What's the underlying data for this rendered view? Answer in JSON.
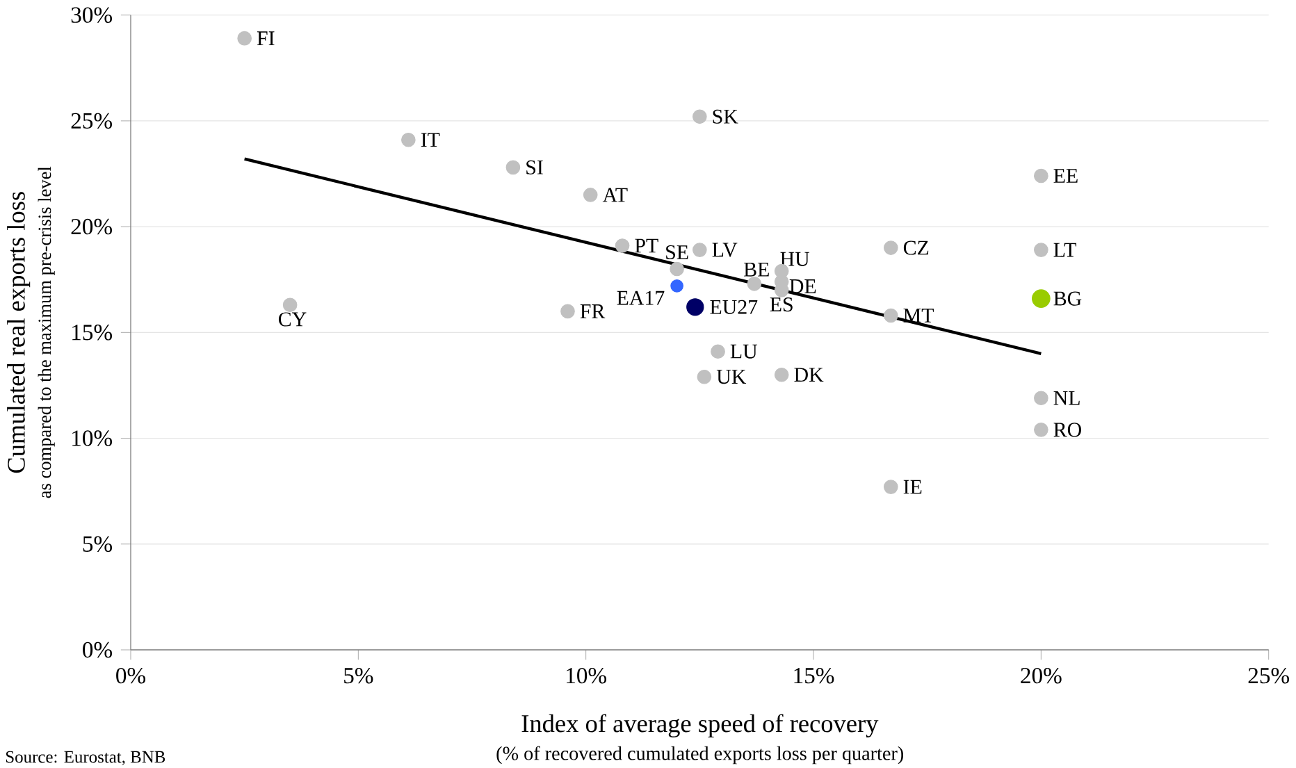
{
  "chart_data": {
    "type": "scatter",
    "xlabel": "Index of average speed of recovery",
    "ylabel": "Cumulated real exports loss",
    "xlim": [
      0,
      25
    ],
    "ylim": [
      0,
      30
    ],
    "xticks": [
      {
        "value": 0,
        "label": "0%"
      },
      {
        "value": 5,
        "label": "5%"
      },
      {
        "value": 10,
        "label": "10%"
      },
      {
        "value": 15,
        "label": "15%"
      },
      {
        "value": 20,
        "label": "20%"
      },
      {
        "value": 25,
        "label": "25%"
      }
    ],
    "yticks": [
      {
        "value": 0,
        "label": "0%"
      },
      {
        "value": 5,
        "label": "5%"
      },
      {
        "value": 10,
        "label": "10%"
      },
      {
        "value": 15,
        "label": "15%"
      },
      {
        "value": 20,
        "label": "20%"
      },
      {
        "value": 25,
        "label": "25%"
      },
      {
        "value": 30,
        "label": "30%"
      }
    ],
    "grid": "y",
    "marker": "circle",
    "series": [
      {
        "color": "#c0c0c0",
        "x": [
          2.5,
          6.1,
          8.4,
          10.1,
          12.5,
          10.8,
          12.0,
          12.5,
          13.7,
          14.3,
          14.3,
          14.3,
          16.7,
          16.7,
          20.0,
          20.0,
          20.0,
          20.0,
          16.7,
          14.3,
          12.9,
          12.6,
          9.6,
          3.5
        ],
        "values": [
          28.9,
          24.1,
          22.8,
          21.5,
          25.2,
          19.1,
          18.0,
          18.9,
          17.3,
          17.9,
          17.4,
          17.0,
          19.0,
          15.8,
          22.4,
          18.9,
          11.9,
          10.4,
          7.7,
          13.0,
          14.1,
          12.9,
          16.0,
          16.3
        ]
      },
      {
        "color": "#3366ff",
        "x": [
          12.0
        ],
        "values": [
          17.2
        ]
      },
      {
        "color": "#000066",
        "x": [
          12.4
        ],
        "values": [
          16.2
        ]
      },
      {
        "color": "#99cc00",
        "x": [
          20.0
        ],
        "values": [
          16.6
        ]
      },
      {
        "type": "line",
        "color": "#000000",
        "x": [
          2.5,
          20.0
        ],
        "values": [
          23.2,
          14.0
        ],
        "line_style": "solid",
        "marker": "none"
      }
    ],
    "annotations": [
      "as compared to the maximum pre-crisis level",
      "(% of recovered cumulated exports loss per quarter)",
      "Source: Eurostat, BNB",
      {
        "text": "FI",
        "x": 2.5,
        "y": 28.9
      },
      {
        "text": "IT",
        "x": 6.1,
        "y": 24.1
      },
      {
        "text": "SI",
        "x": 8.4,
        "y": 22.8
      },
      {
        "text": "AT",
        "x": 10.1,
        "y": 21.5
      },
      {
        "text": "SK",
        "x": 12.5,
        "y": 25.2
      },
      {
        "text": "PT",
        "x": 10.8,
        "y": 19.1
      },
      {
        "text": "SE",
        "x": 12.0,
        "y": 18.0
      },
      {
        "text": "LV",
        "x": 12.5,
        "y": 18.9
      },
      {
        "text": "EA17",
        "x": 12.0,
        "y": 17.2
      },
      {
        "text": "EU27",
        "x": 12.4,
        "y": 16.2
      },
      {
        "text": "BE",
        "x": 13.7,
        "y": 17.3
      },
      {
        "text": "HU",
        "x": 14.3,
        "y": 17.9
      },
      {
        "text": "DE",
        "x": 14.3,
        "y": 17.4
      },
      {
        "text": "ES",
        "x": 14.3,
        "y": 17.0
      },
      {
        "text": "CZ",
        "x": 16.7,
        "y": 19.0
      },
      {
        "text": "MT",
        "x": 16.7,
        "y": 15.8
      },
      {
        "text": "EE",
        "x": 20.0,
        "y": 22.4
      },
      {
        "text": "LT",
        "x": 20.0,
        "y": 18.9
      },
      {
        "text": "BG",
        "x": 20.0,
        "y": 16.6
      },
      {
        "text": "NL",
        "x": 20.0,
        "y": 11.9
      },
      {
        "text": "RO",
        "x": 20.0,
        "y": 10.4
      },
      {
        "text": "IE",
        "x": 16.7,
        "y": 7.7
      },
      {
        "text": "DK",
        "x": 14.3,
        "y": 13.0
      },
      {
        "text": "LU",
        "x": 12.9,
        "y": 14.1
      },
      {
        "text": "UK",
        "x": 12.6,
        "y": 12.9
      },
      {
        "text": "FR",
        "x": 9.6,
        "y": 16.0
      },
      {
        "text": "CY",
        "x": 3.5,
        "y": 16.3
      }
    ]
  }
}
